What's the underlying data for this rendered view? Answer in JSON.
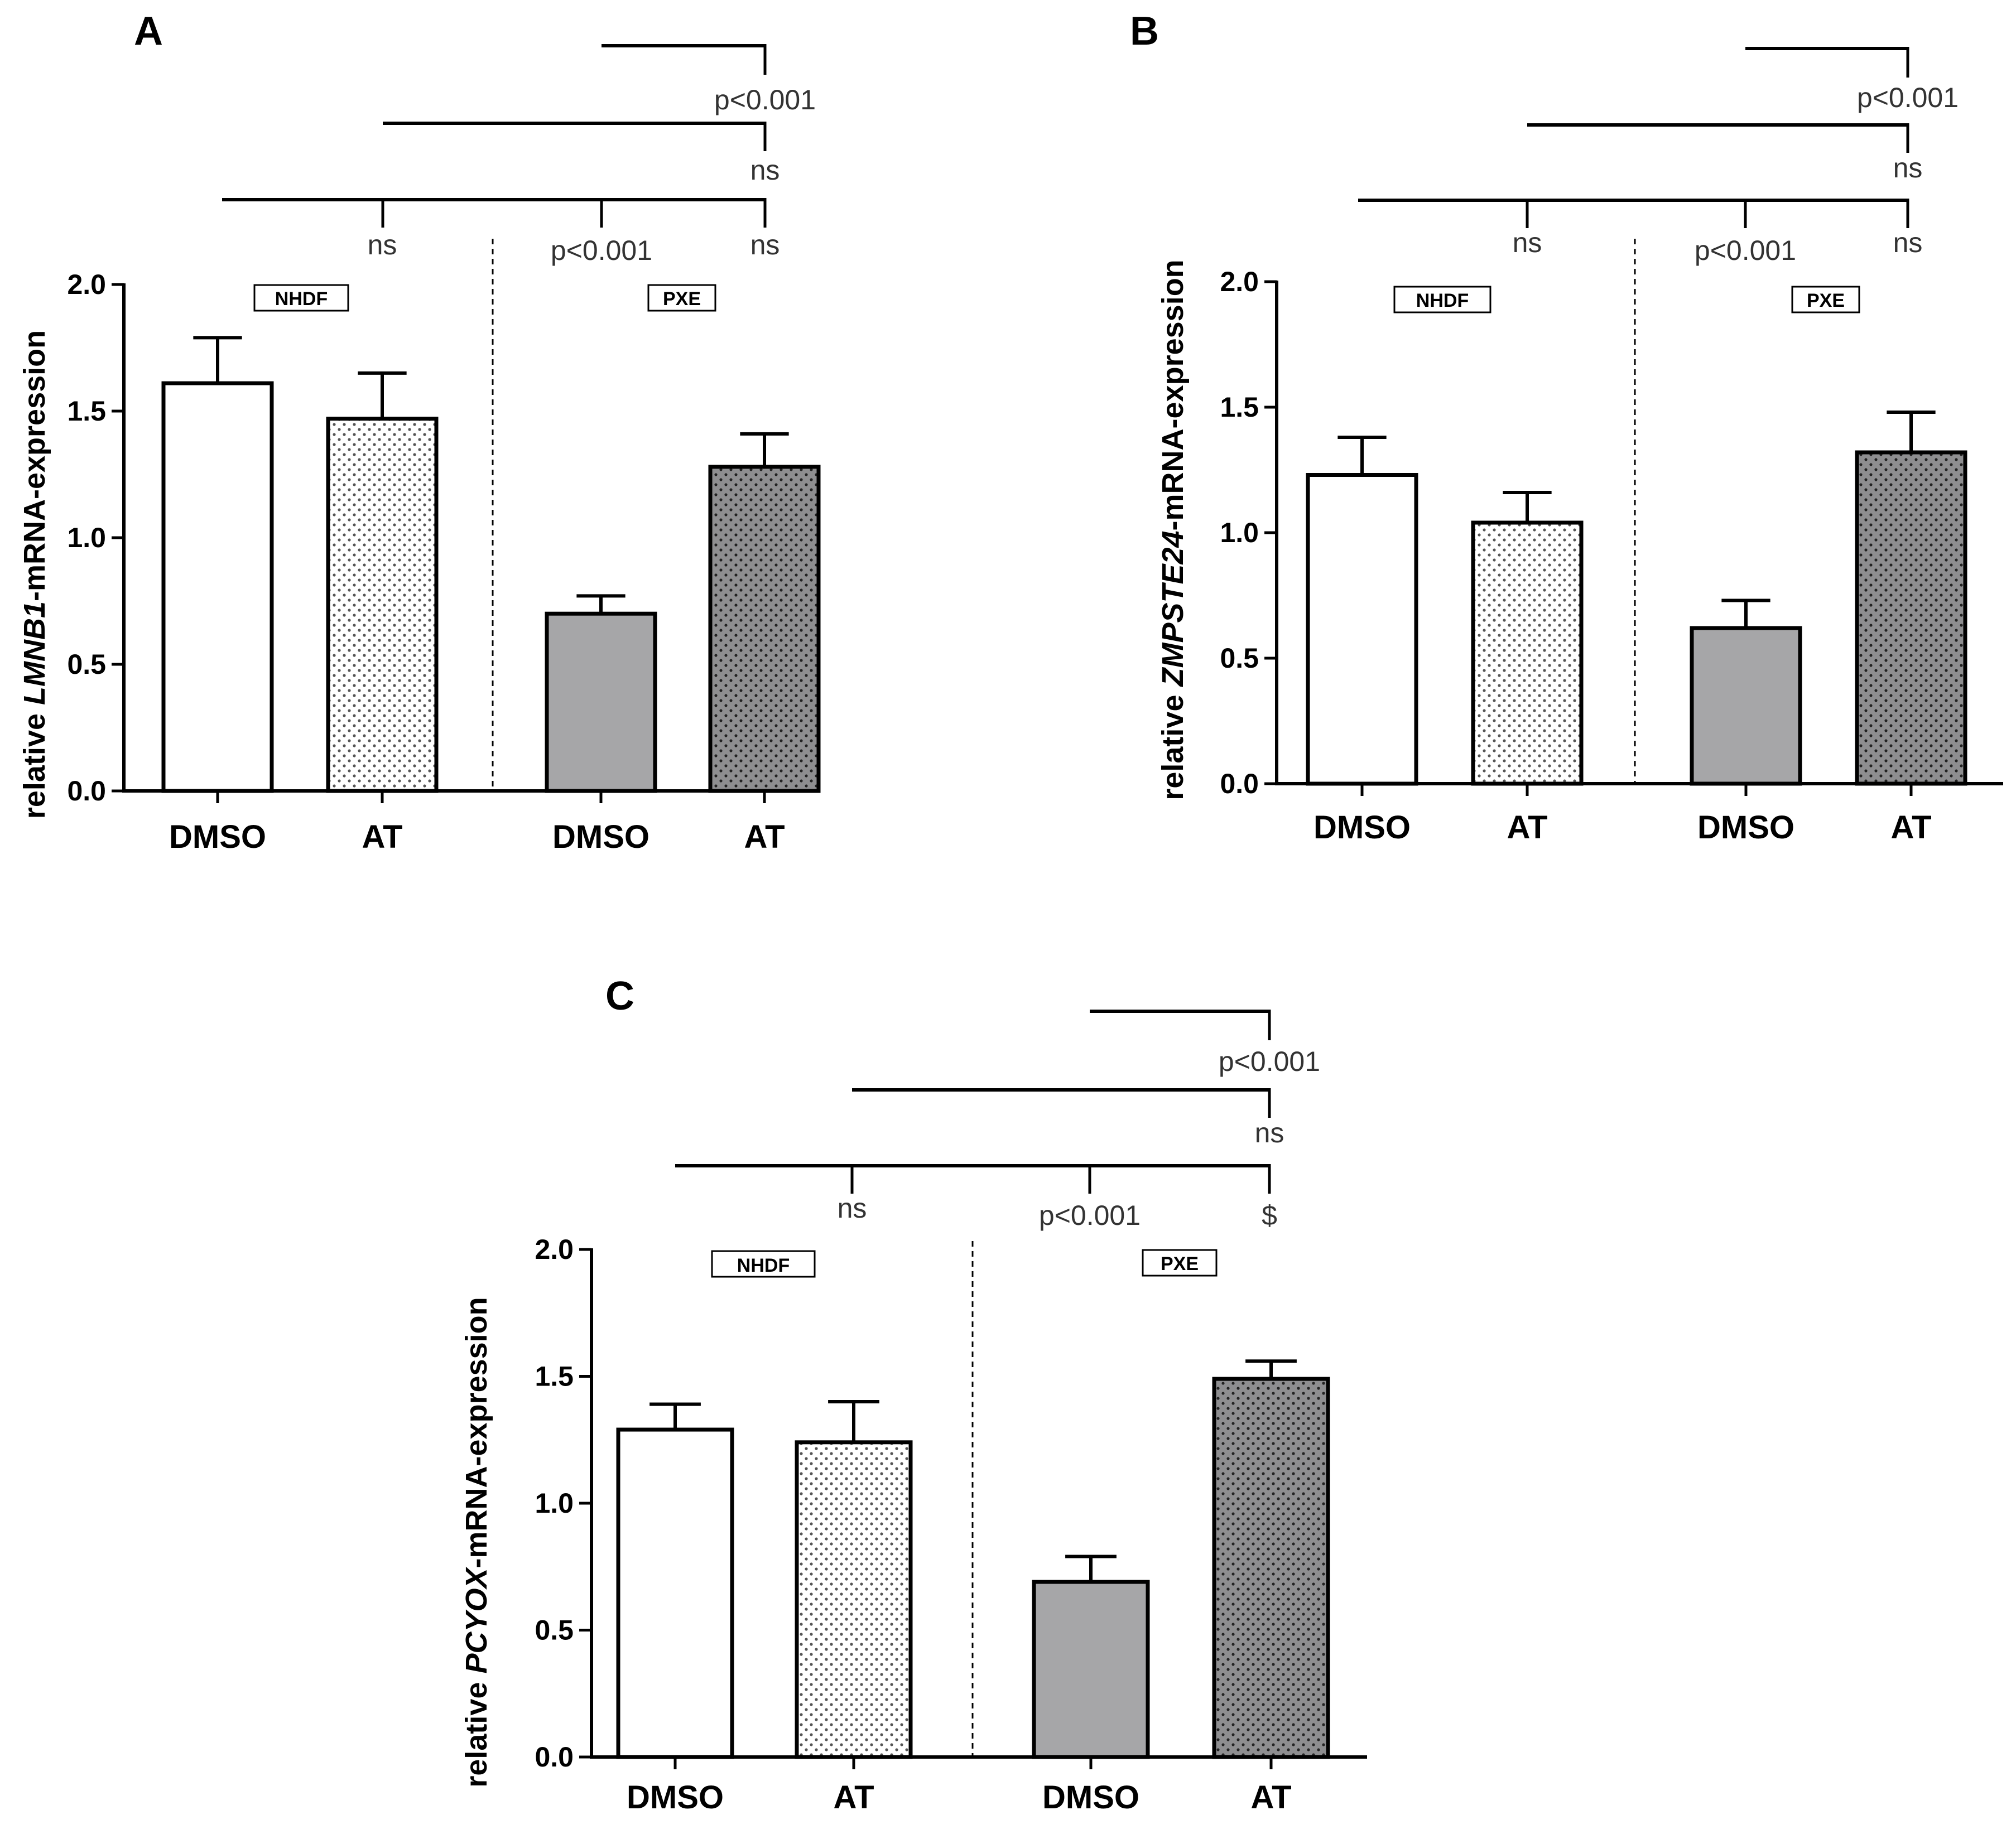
{
  "colors": {
    "axis": "#000000",
    "bar_white": "#ffffff",
    "bar_gray": "#a6a6a8",
    "bar_dark": "#8e8e90",
    "dot_light": "#555555",
    "dot_dark": "#222222",
    "text_sig": "#333333"
  },
  "chart_data": [
    {
      "type": "bar",
      "panel_letter": "A",
      "ylabel_prefix": "relative ",
      "ylabel_gene": "LMNB1",
      "ylabel_suffix": "-mRNA-expression",
      "ylim": [
        0,
        2.0
      ],
      "yticks": [
        "0.0",
        "0.5",
        "1.0",
        "1.5",
        "2.0"
      ],
      "groups": [
        "NHDF",
        "PXE"
      ],
      "categories": [
        "DMSO",
        "AT",
        "DMSO",
        "AT"
      ],
      "values": [
        1.61,
        1.47,
        0.7,
        1.28
      ],
      "errors": [
        0.18,
        0.18,
        0.07,
        0.13
      ],
      "styles": [
        "white",
        "white-dots",
        "gray",
        "gray-dots"
      ],
      "significance": [
        {
          "from": 2,
          "to": 3,
          "label": "p<0.001"
        },
        {
          "from": 1,
          "to": 3,
          "label": "ns"
        },
        {
          "from": 0,
          "ticks": [
            1,
            2,
            3
          ],
          "labels": [
            "ns",
            "p<0.001",
            "ns"
          ]
        }
      ]
    },
    {
      "type": "bar",
      "panel_letter": "B",
      "ylabel_prefix": "relative ",
      "ylabel_gene": "ZMPSTE24",
      "ylabel_suffix": "-mRNA-expression",
      "ylim": [
        0,
        2.0
      ],
      "yticks": [
        "0.0",
        "0.5",
        "1.0",
        "1.5",
        "2.0"
      ],
      "groups": [
        "NHDF",
        "PXE"
      ],
      "categories": [
        "DMSO",
        "AT",
        "DMSO",
        "AT"
      ],
      "values": [
        1.23,
        1.04,
        0.62,
        1.32
      ],
      "errors": [
        0.15,
        0.12,
        0.11,
        0.16
      ],
      "styles": [
        "white",
        "white-dots",
        "gray",
        "gray-dots"
      ],
      "significance": [
        {
          "from": 2,
          "to": 3,
          "label": "p<0.001"
        },
        {
          "from": 1,
          "to": 3,
          "label": "ns"
        },
        {
          "from": 0,
          "ticks": [
            1,
            2,
            3
          ],
          "labels": [
            "ns",
            "p<0.001",
            "ns"
          ]
        }
      ]
    },
    {
      "type": "bar",
      "panel_letter": "C",
      "ylabel_prefix": "relative ",
      "ylabel_gene": "PCYOX",
      "ylabel_suffix": "-mRNA-expression",
      "ylim": [
        0,
        2.0
      ],
      "yticks": [
        "0.0",
        "0.5",
        "1.0",
        "1.5",
        "2.0"
      ],
      "groups": [
        "NHDF",
        "PXE"
      ],
      "categories": [
        "DMSO",
        "AT",
        "DMSO",
        "AT"
      ],
      "values": [
        1.29,
        1.24,
        0.69,
        1.49
      ],
      "errors": [
        0.1,
        0.16,
        0.1,
        0.07
      ],
      "styles": [
        "white",
        "white-dots",
        "gray",
        "gray-dots"
      ],
      "significance": [
        {
          "from": 2,
          "to": 3,
          "label": "p<0.001"
        },
        {
          "from": 1,
          "to": 3,
          "label": "ns"
        },
        {
          "from": 0,
          "ticks": [
            1,
            2,
            3
          ],
          "labels": [
            "ns",
            "p<0.001",
            "$"
          ]
        }
      ]
    }
  ]
}
